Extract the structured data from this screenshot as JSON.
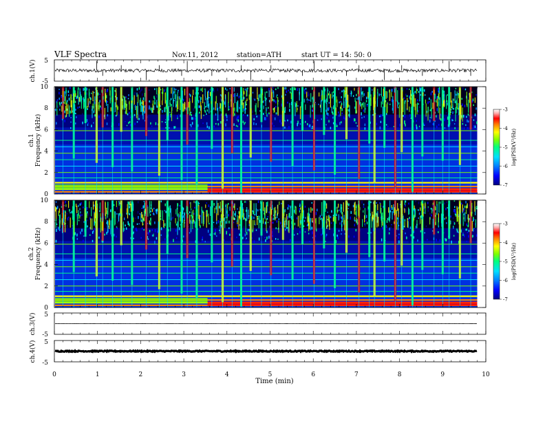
{
  "header": {
    "title": "VLF  Spectra",
    "date": "Nov.11, 2012",
    "station": "station=ATH",
    "start": "start  UT  =    14: 50: 0"
  },
  "chart_data": [
    {
      "type": "line",
      "name": "ch1-waveform",
      "ylabel": "ch.1(V)",
      "ylim": [
        -5,
        5
      ],
      "yticks": [
        "5",
        "-5"
      ],
      "baseline_v": 0.0,
      "noise_v": 0.8,
      "spikes_min": [
        0.98,
        1.12,
        1.55,
        2.13,
        2.43,
        2.95,
        3.08,
        3.65,
        4.33,
        4.55,
        5.02,
        5.75,
        6.02,
        6.77,
        7.06,
        7.65,
        8.05,
        8.53,
        9.15,
        9.65
      ],
      "xlim": [
        0,
        10
      ]
    },
    {
      "type": "heatmap",
      "name": "ch1-spectrogram",
      "ylabel": "Frequency  (kHz)",
      "channel_label": "ch.1",
      "ylim": [
        0,
        10
      ],
      "yticks": [
        "0",
        "2",
        "4",
        "6",
        "8",
        "10"
      ],
      "xlim": [
        0,
        10
      ],
      "data_end_min": 9.8,
      "colorbar": {
        "label": "log(PSD(V²/Hz)",
        "range": [
          -7,
          -3
        ],
        "ticks": [
          "-3",
          "-4",
          "-5",
          "-6",
          "-7"
        ],
        "colors": [
          "#000080",
          "#0000ff",
          "#0080ff",
          "#00e0ff",
          "#00ff80",
          "#80ff00",
          "#ffff00",
          "#ff8000",
          "#ff0000",
          "#ffb0b0",
          "#ffffff"
        ]
      },
      "bands_khz": [
        0.2,
        0.45,
        0.7,
        1.05,
        1.5,
        2.0,
        2.6,
        3.2,
        3.8,
        4.4,
        5.0,
        5.9
      ],
      "regime_change_min": 3.55,
      "sferics_min": [
        0.2,
        0.45,
        0.72,
        0.98,
        1.12,
        1.35,
        1.55,
        1.8,
        2.13,
        2.43,
        2.62,
        2.95,
        3.08,
        3.3,
        3.65,
        3.9,
        4.12,
        4.33,
        4.55,
        4.8,
        5.02,
        5.3,
        5.52,
        5.75,
        6.02,
        6.25,
        6.5,
        6.77,
        7.06,
        7.3,
        7.42,
        7.65,
        7.9,
        8.05,
        8.3,
        8.53,
        8.8,
        9.0,
        9.15,
        9.4,
        9.65
      ]
    },
    {
      "type": "heatmap",
      "name": "ch2-spectrogram",
      "ylabel": "Frequency  (kHz)",
      "channel_label": "ch.2",
      "ylim": [
        0,
        10
      ],
      "yticks": [
        "0",
        "2",
        "4",
        "6",
        "8",
        "10"
      ],
      "xlim": [
        0,
        10
      ],
      "data_end_min": 9.8,
      "colorbar": {
        "label": "log(PSD(V²/Hz)",
        "range": [
          -7,
          -3
        ],
        "ticks": [
          "-3",
          "-4",
          "-5",
          "-6",
          "-7"
        ],
        "colors": [
          "#000080",
          "#0000ff",
          "#0080ff",
          "#00e0ff",
          "#00ff80",
          "#80ff00",
          "#ffff00",
          "#ff8000",
          "#ff0000",
          "#ffb0b0",
          "#ffffff"
        ]
      },
      "bands_khz": [
        0.2,
        0.45,
        0.7,
        1.05,
        1.5,
        2.0,
        2.6,
        3.2,
        3.8,
        4.4,
        5.0,
        5.9
      ],
      "regime_change_min": 3.55,
      "sferics_min": [
        0.2,
        0.45,
        0.72,
        0.98,
        1.12,
        1.35,
        1.55,
        1.8,
        2.13,
        2.43,
        2.62,
        2.95,
        3.08,
        3.3,
        3.65,
        3.9,
        4.12,
        4.33,
        4.55,
        4.8,
        5.02,
        5.3,
        5.52,
        5.75,
        6.02,
        6.25,
        6.5,
        6.77,
        7.06,
        7.3,
        7.42,
        7.65,
        7.9,
        8.05,
        8.3,
        8.53,
        8.8,
        9.0,
        9.15,
        9.4,
        9.65
      ]
    },
    {
      "type": "line",
      "name": "ch3-waveform",
      "ylabel": "ch.3(V)",
      "ylim": [
        -5,
        5
      ],
      "yticks": [
        "5",
        "-5"
      ],
      "baseline_v": 0.0,
      "noise_v": 0.02,
      "xlim": [
        0,
        10
      ]
    },
    {
      "type": "line",
      "name": "ch4-waveform",
      "ylabel": "ch.4(V)",
      "ylim": [
        -5,
        5
      ],
      "yticks": [
        "5",
        "-5"
      ],
      "baseline_v": 0.0,
      "noise_v": 0.25,
      "xlim": [
        0,
        10
      ]
    }
  ],
  "xaxis": {
    "label": "Time  (min)",
    "ticks": [
      "0",
      "1",
      "2",
      "3",
      "4",
      "5",
      "6",
      "7",
      "8",
      "9",
      "10"
    ]
  }
}
